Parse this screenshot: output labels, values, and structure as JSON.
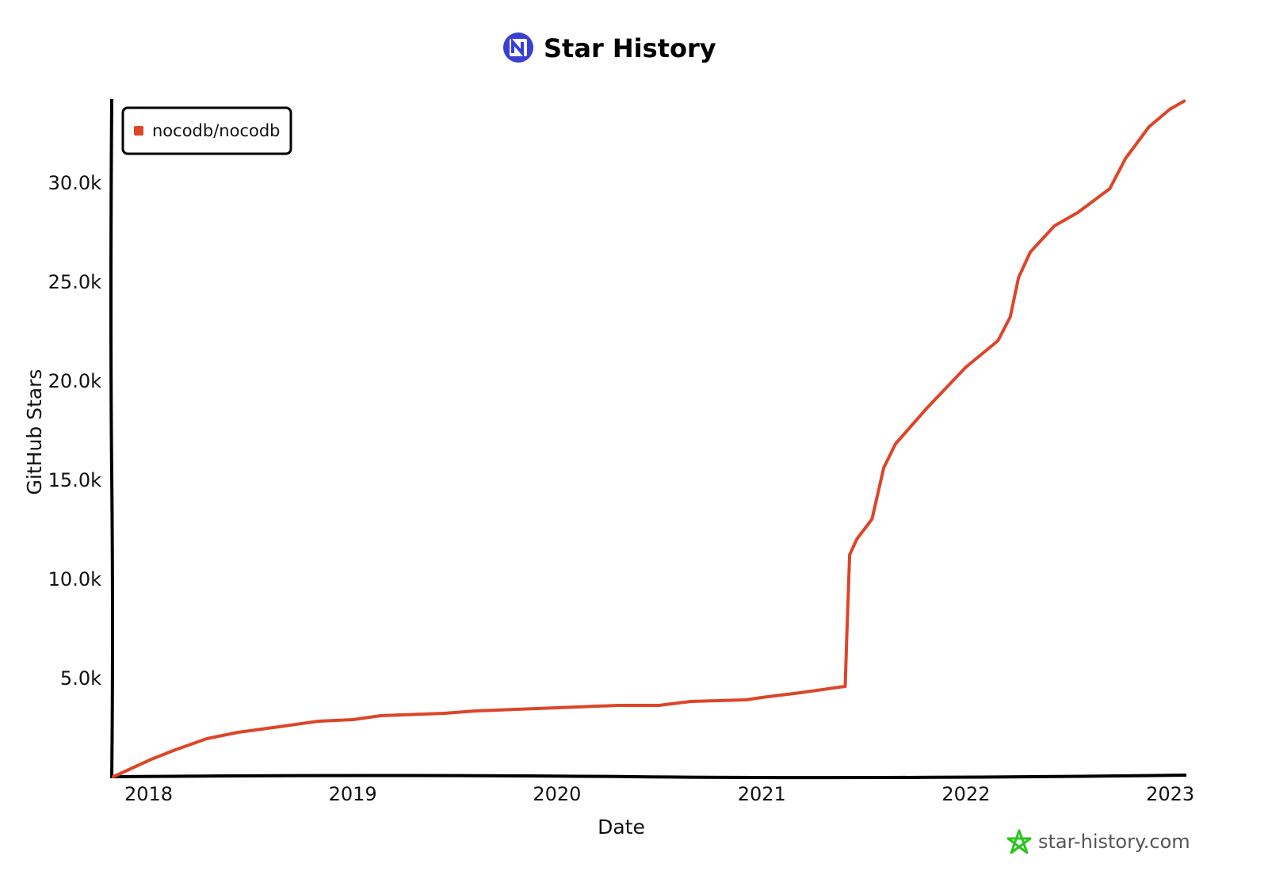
{
  "chart_data": {
    "type": "line",
    "title": "Star History",
    "xlabel": "Date",
    "ylabel": "GitHub Stars",
    "xlim": [
      "2017-10-30",
      "2023-01-27"
    ],
    "ylim": [
      0,
      34200
    ],
    "grid": false,
    "legend_position": "top-left",
    "x_ticks": [
      "2018",
      "2019",
      "2020",
      "2021",
      "2022",
      "2023"
    ],
    "y_ticks": [
      {
        "value": 5000,
        "label": "5.0k"
      },
      {
        "value": 10000,
        "label": "10.0k"
      },
      {
        "value": 15000,
        "label": "15.0k"
      },
      {
        "value": 20000,
        "label": "20.0k"
      },
      {
        "value": 25000,
        "label": "25.0k"
      },
      {
        "value": 30000,
        "label": "30.0k"
      }
    ],
    "series": [
      {
        "name": "nocodb/nocodb",
        "color": "#dd4528",
        "x": [
          "2017-10-30",
          "2018-01-06",
          "2018-02-18",
          "2018-04-15",
          "2018-06-10",
          "2018-08-22",
          "2018-10-31",
          "2019-01-01",
          "2019-02-20",
          "2019-06-14",
          "2019-08-08",
          "2020-01-01",
          "2020-04-20",
          "2020-07-01",
          "2020-08-28",
          "2020-12-04",
          "2021-01-01",
          "2021-03-11",
          "2021-05-30",
          "2021-06-02",
          "2021-06-07",
          "2021-06-20",
          "2021-07-17",
          "2021-08-07",
          "2021-08-28",
          "2021-10-23",
          "2022-01-01",
          "2022-02-27",
          "2022-03-21",
          "2022-04-05",
          "2022-04-26",
          "2022-06-08",
          "2022-07-20",
          "2022-09-15",
          "2022-10-13",
          "2022-11-24",
          "2023-01-01",
          "2023-01-26"
        ],
        "y": [
          0,
          880,
          1360,
          1920,
          2240,
          2520,
          2800,
          2880,
          3080,
          3200,
          3320,
          3480,
          3600,
          3600,
          3800,
          3880,
          4000,
          4240,
          4560,
          7200,
          11200,
          12000,
          13000,
          15600,
          16800,
          18600,
          20680,
          22000,
          23200,
          25200,
          26480,
          27800,
          28480,
          29680,
          31200,
          32800,
          33700,
          34100
        ]
      }
    ]
  },
  "watermark": "star-history.com",
  "colors": {
    "logo": "#3a3fd4",
    "watermark_star": "#2bc41c"
  }
}
